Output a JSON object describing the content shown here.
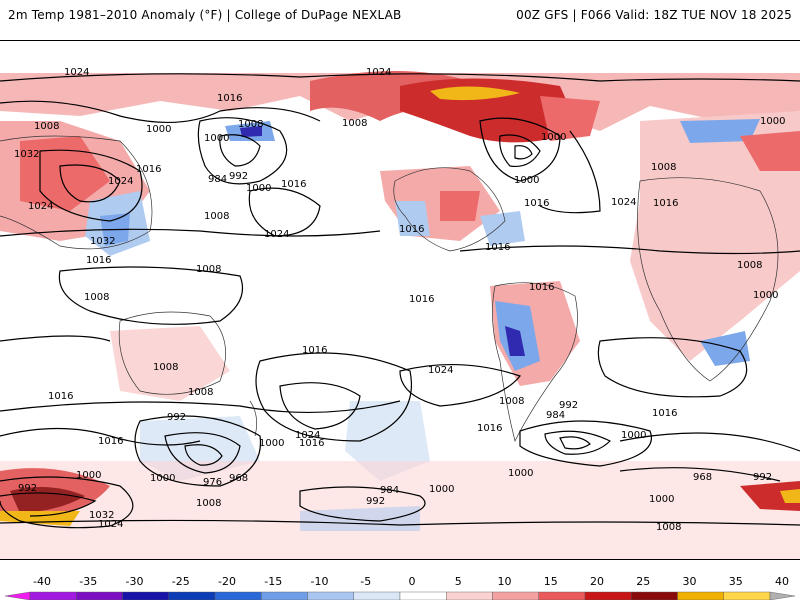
{
  "header": {
    "left_title": "2m Temp 1981–2010 Anomaly (°F) | College of DuPage NEXLAB",
    "right_title": "00Z GFS | F066 Valid: 18Z TUE NOV 18 2025"
  },
  "isobar_labels": [
    "1024",
    "1024",
    "1016",
    "1008",
    "1000",
    "1000",
    "1008",
    "1032",
    "1016",
    "1024",
    "1024",
    "1032",
    "1016",
    "1008",
    "984",
    "992",
    "1000",
    "1016",
    "1008",
    "1024",
    "1008",
    "1000",
    "1000",
    "1016",
    "1016",
    "1016",
    "1024",
    "1008",
    "1016",
    "1000",
    "1008",
    "1000",
    "1008",
    "1016",
    "1016",
    "1008",
    "1016",
    "1008",
    "1016",
    "1024",
    "1016",
    "1000",
    "1024",
    "1016",
    "992",
    "968",
    "976",
    "1000",
    "1008",
    "984",
    "992",
    "992",
    "984",
    "1008",
    "1000",
    "1016",
    "1016",
    "968",
    "992",
    "1000",
    "1000",
    "1000",
    "1008",
    "1032",
    "1024",
    "992",
    "1000"
  ],
  "colorbar": {
    "ticks": [
      "-40",
      "-35",
      "-30",
      "-25",
      "-20",
      "-15",
      "-10",
      "-5",
      "0",
      "5",
      "10",
      "15",
      "20",
      "25",
      "30",
      "35",
      "40"
    ],
    "colors": [
      "#f01df0",
      "#a21ae0",
      "#7d0fc2",
      "#1a13a8",
      "#0d3db5",
      "#2a68d8",
      "#6e9ee8",
      "#a8c6ef",
      "#dbe7f7",
      "#ffffff",
      "#fbd2d2",
      "#f4a1a1",
      "#ea5a5a",
      "#c81616",
      "#8a0b0b",
      "#f0b000",
      "#ffd54a",
      "#b0b0b0"
    ]
  }
}
